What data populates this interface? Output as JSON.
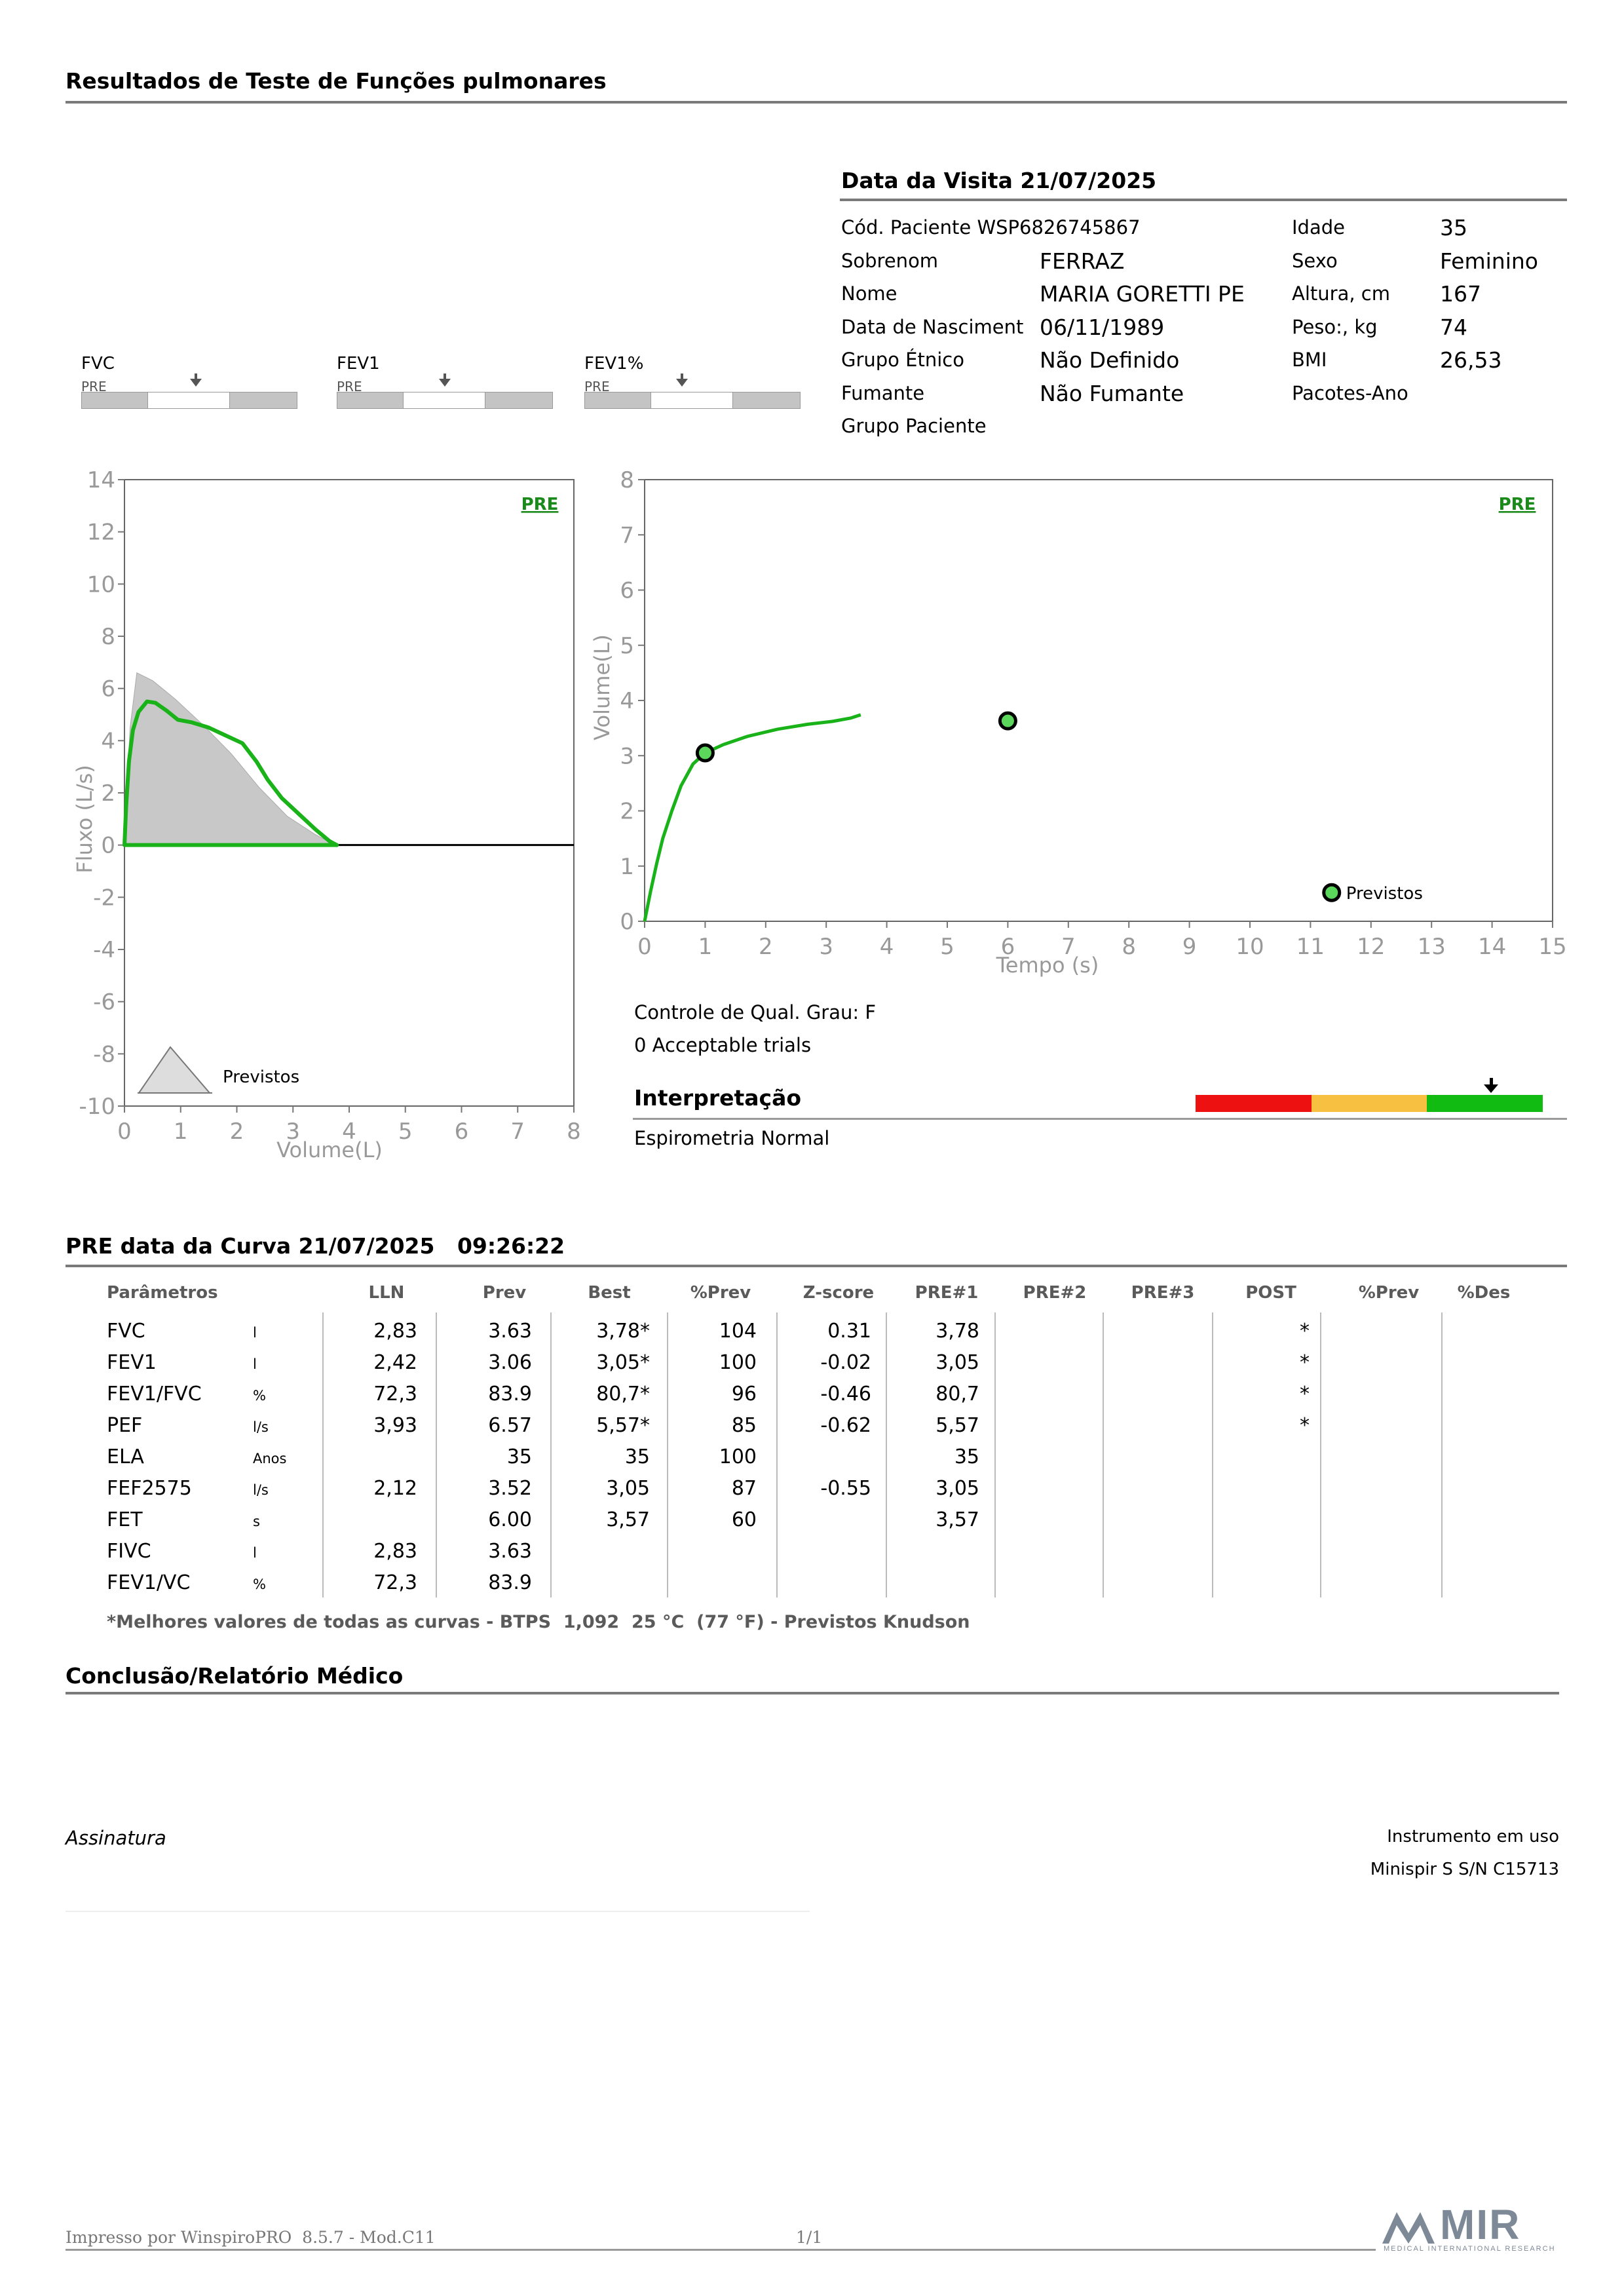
{
  "header": {
    "title": "Resultados de Teste de Funções pulmonares"
  },
  "visit": {
    "title": "Data da Visita 21/07/2025",
    "fields": [
      {
        "label": "Cód. Paciente WSP6826745867",
        "value": ""
      },
      {
        "label": "Sobrenom",
        "value": "FERRAZ"
      },
      {
        "label": "Nome",
        "value": "MARIA GORETTI PE"
      },
      {
        "label": "Data de Nasciment",
        "value": "06/11/1989"
      },
      {
        "label": "Grupo Étnico",
        "value": "Não Definido"
      },
      {
        "label": "Fumante",
        "value": "Não Fumante"
      },
      {
        "label": "Grupo Paciente",
        "value": ""
      }
    ],
    "fields_right": [
      {
        "label": "Idade",
        "value": "35"
      },
      {
        "label": "Sexo",
        "value": "Feminino"
      },
      {
        "label": "Altura, cm",
        "value": "167"
      },
      {
        "label": "Peso:, kg",
        "value": "74"
      },
      {
        "label": "BMI",
        "value": "26,53"
      },
      {
        "label": "Pacotes-Ano",
        "value": ""
      }
    ]
  },
  "gauges": [
    {
      "name": "FVC",
      "tag": "PRE",
      "level": 0.53
    },
    {
      "name": "FEV1",
      "tag": "PRE",
      "level": 0.5
    },
    {
      "name": "FEV1%",
      "tag": "PRE",
      "level": 0.45
    }
  ],
  "flow_volume": {
    "tag": "PRE",
    "ylabel": "Fluxo (L/s)",
    "xlabel": "Volume(L)",
    "legend": "Previstos",
    "y_ticks": [
      "14",
      "12",
      "10",
      "8",
      "6",
      "4",
      "2",
      "0",
      "-2",
      "-4",
      "-6",
      "-8",
      "-10"
    ],
    "x_ticks": [
      "0",
      "1",
      "2",
      "3",
      "4",
      "5",
      "6",
      "7",
      "8"
    ]
  },
  "volume_time": {
    "tag": "PRE",
    "ylabel": "Volume(L)",
    "xlabel": "Tempo (s)",
    "legend": "Previstos",
    "y_ticks": [
      "8",
      "7",
      "6",
      "5",
      "4",
      "3",
      "2",
      "1",
      "0"
    ],
    "x_ticks": [
      "0",
      "1",
      "2",
      "3",
      "4",
      "5",
      "6",
      "7",
      "8",
      "9",
      "10",
      "11",
      "12",
      "13",
      "14",
      "15"
    ]
  },
  "quality": {
    "grade": "Controle de Qual. Grau: F",
    "trials": "0 Acceptable trials"
  },
  "interpretation": {
    "title": "Interpretação",
    "text": "Espirometria Normal",
    "colors": [
      "#ee1111",
      "#f8c040",
      "#11bb11"
    ],
    "level": 0.85
  },
  "curve": {
    "title": "PRE data da Curva 21/07/2025   09:26:22",
    "columns": [
      "Parâmetros",
      "LLN",
      "Prev",
      "Best",
      "%Prev",
      "Z-score",
      "PRE#1",
      "PRE#2",
      "PRE#3",
      "POST",
      "%Prev",
      "%Des"
    ],
    "rows": [
      {
        "param": "FVC",
        "unit": "l",
        "lln": "2,83",
        "prev": "3.63",
        "best": "3,78*",
        "pprev": "104",
        "z": "0.31",
        "pre1": "3,78",
        "post": "*"
      },
      {
        "param": "FEV1",
        "unit": "l",
        "lln": "2,42",
        "prev": "3.06",
        "best": "3,05*",
        "pprev": "100",
        "z": "-0.02",
        "pre1": "3,05",
        "post": "*"
      },
      {
        "param": "FEV1/FVC",
        "unit": "%",
        "lln": "72,3",
        "prev": "83.9",
        "best": "80,7*",
        "pprev": "96",
        "z": "-0.46",
        "pre1": "80,7",
        "post": "*"
      },
      {
        "param": "PEF",
        "unit": "l/s",
        "lln": "3,93",
        "prev": "6.57",
        "best": "5,57*",
        "pprev": "85",
        "z": "-0.62",
        "pre1": "5,57",
        "post": "*"
      },
      {
        "param": "ELA",
        "unit": "Anos",
        "lln": "",
        "prev": "35",
        "best": "35",
        "pprev": "100",
        "z": "",
        "pre1": "35",
        "post": ""
      },
      {
        "param": "FEF2575",
        "unit": "l/s",
        "lln": "2,12",
        "prev": "3.52",
        "best": "3,05",
        "pprev": "87",
        "z": "-0.55",
        "pre1": "3,05",
        "post": ""
      },
      {
        "param": "FET",
        "unit": "s",
        "lln": "",
        "prev": "6.00",
        "best": "3,57",
        "pprev": "60",
        "z": "",
        "pre1": "3,57",
        "post": ""
      },
      {
        "param": "FIVC",
        "unit": "l",
        "lln": "2,83",
        "prev": "3.63",
        "best": "",
        "pprev": "",
        "z": "",
        "pre1": "",
        "post": ""
      },
      {
        "param": "FEV1/VC",
        "unit": "%",
        "lln": "72,3",
        "prev": "83.9",
        "best": "",
        "pprev": "",
        "z": "",
        "pre1": "",
        "post": ""
      }
    ],
    "footnote": "*Melhores valores de todas as curvas - BTPS  1,092  25 °C  (77 °F) - Previstos Knudson"
  },
  "conclusion": {
    "title": "Conclusão/Relatório Médico"
  },
  "signature": {
    "label": "Assinatura"
  },
  "instrument": {
    "label": "Instrumento em uso",
    "value": "Minispir S S/N C15713"
  },
  "footer": {
    "printed_by": "Impresso por WinspiroPRO  8.5.7 - Mod.C11",
    "page": "1/1",
    "brand": "MIR",
    "brand_sub": "MEDICAL INTERNATIONAL RESEARCH"
  }
}
